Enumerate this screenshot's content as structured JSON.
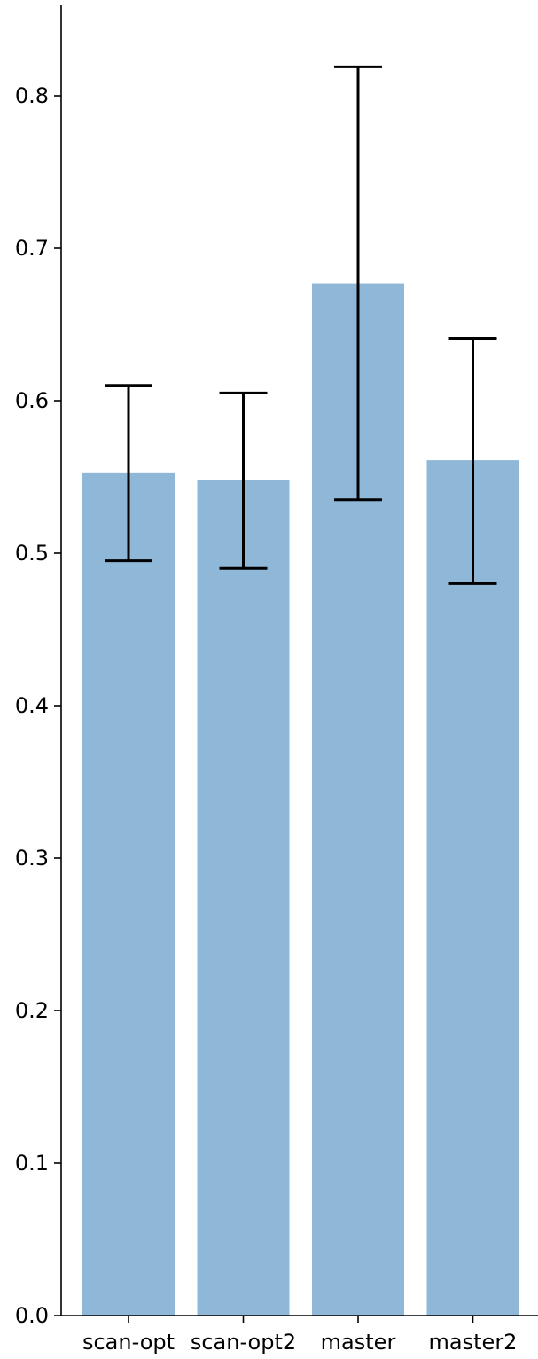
{
  "chart_data": {
    "type": "bar",
    "title": "",
    "xlabel": "",
    "ylabel": "",
    "categories": [
      "scan-opt",
      "scan-opt2",
      "master",
      "master2"
    ],
    "values": [
      0.553,
      0.548,
      0.677,
      0.561
    ],
    "error_low": [
      0.495,
      0.49,
      0.535,
      0.48
    ],
    "error_high": [
      0.61,
      0.605,
      0.819,
      0.641
    ],
    "ylim": [
      0.0,
      0.86
    ],
    "yticks": [
      0.0,
      0.1,
      0.2,
      0.3,
      0.4,
      0.5,
      0.6,
      0.7,
      0.8
    ],
    "ytick_labels": [
      "0.0",
      "0.1",
      "0.2",
      "0.3",
      "0.4",
      "0.5",
      "0.6",
      "0.7",
      "0.8"
    ],
    "grid": false,
    "bar_color": "#8fb8d8",
    "error_color": "#000000"
  }
}
